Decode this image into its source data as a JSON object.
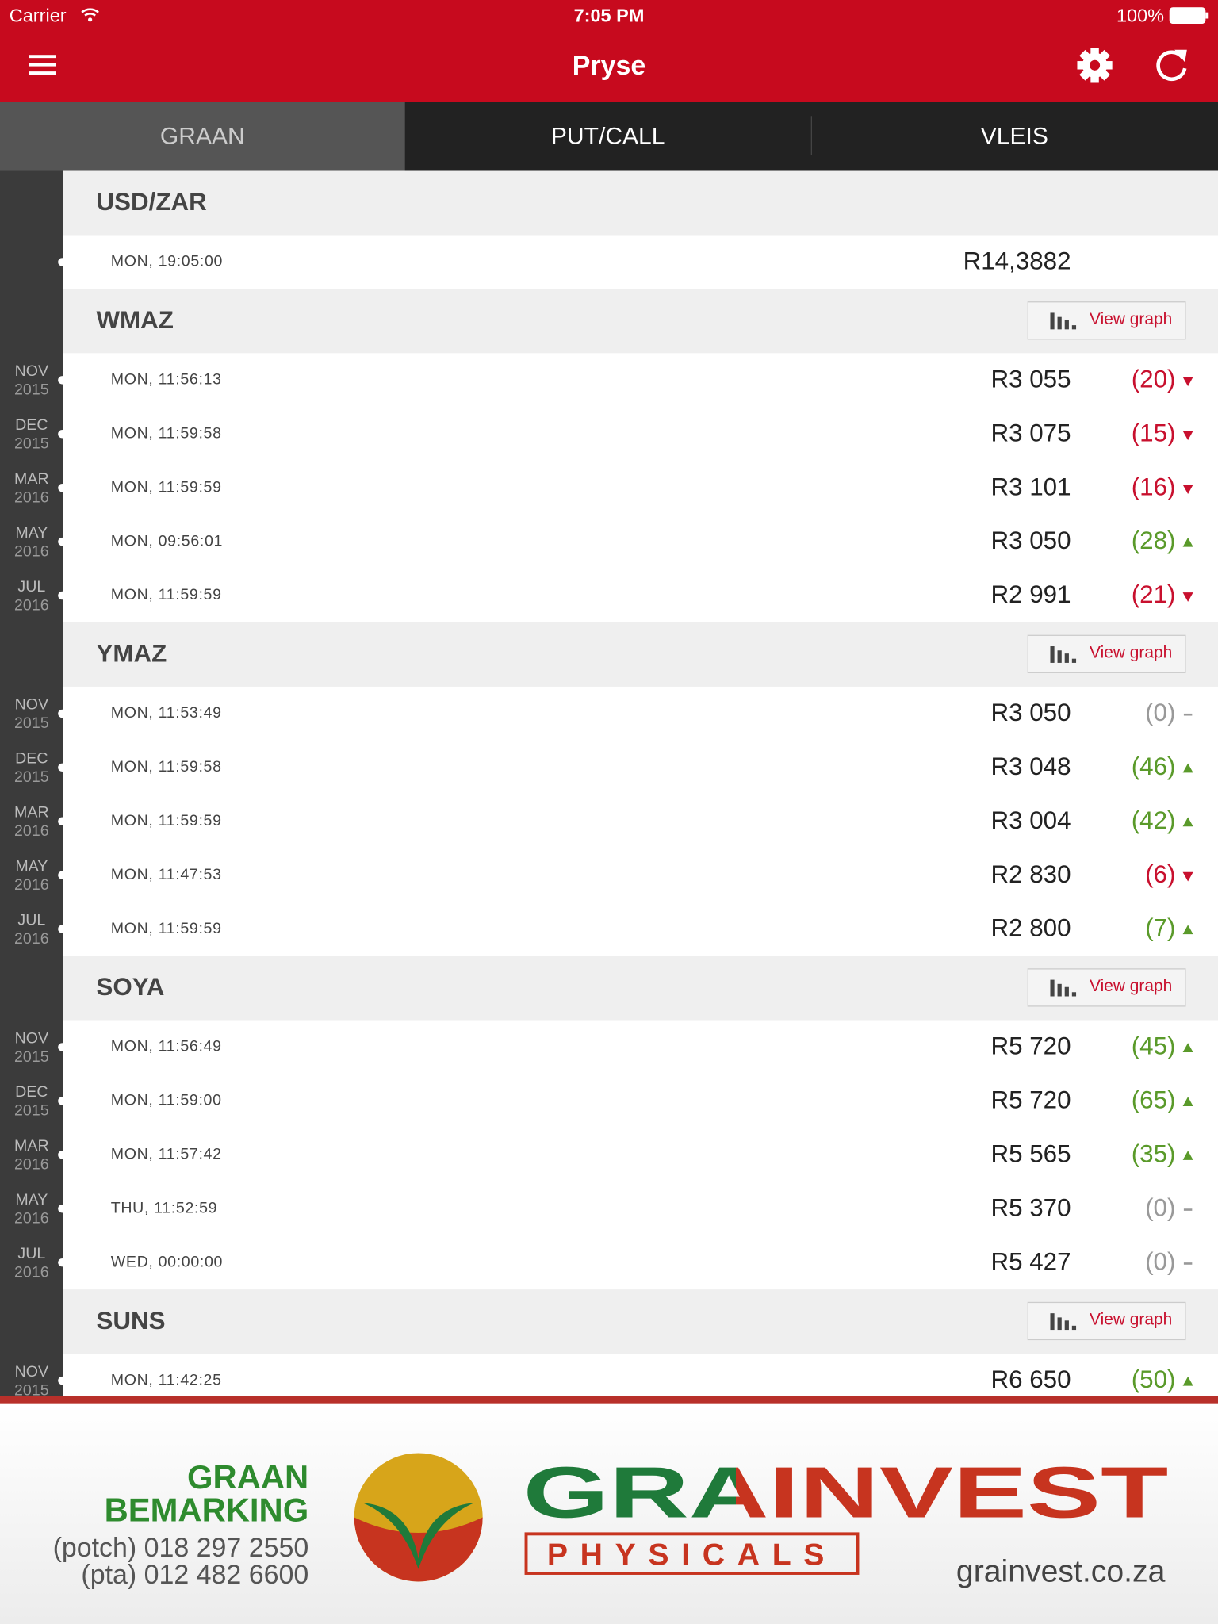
{
  "status_bar": {
    "carrier": "Carrier",
    "time": "7:05 PM",
    "battery": "100%"
  },
  "header": {
    "title": "Pryse"
  },
  "tabs": {
    "items": [
      "GRAAN",
      "PUT/CALL",
      "VLEIS"
    ],
    "active": 0
  },
  "sections": [
    {
      "title": "USD/ZAR",
      "rows": [
        {
          "time": "MON, 19:05:00",
          "price": "R14,3882"
        }
      ]
    },
    {
      "title": "WMAZ",
      "button": "View graph",
      "rows": [
        {
          "month": "NOV",
          "year": "2015",
          "time": "MON, 11:56:13",
          "price": "R3 055",
          "change": "(20)",
          "trend": "down"
        },
        {
          "month": "DEC",
          "year": "2015",
          "time": "MON, 11:59:58",
          "price": "R3 075",
          "change": "(15)",
          "trend": "down"
        },
        {
          "month": "MAR",
          "year": "2016",
          "time": "MON, 11:59:59",
          "price": "R3 101",
          "change": "(16)",
          "trend": "down"
        },
        {
          "month": "MAY",
          "year": "2016",
          "time": "MON, 09:56:01",
          "price": "R3 050",
          "change": "(28)",
          "trend": "up"
        },
        {
          "month": "JUL",
          "year": "2016",
          "time": "MON, 11:59:59",
          "price": "R2 991",
          "change": "(21)",
          "trend": "down"
        }
      ]
    },
    {
      "title": "YMAZ",
      "button": "View graph",
      "rows": [
        {
          "month": "NOV",
          "year": "2015",
          "time": "MON, 11:53:49",
          "price": "R3 050",
          "change": "(0)",
          "trend": "flat"
        },
        {
          "month": "DEC",
          "year": "2015",
          "time": "MON, 11:59:58",
          "price": "R3 048",
          "change": "(46)",
          "trend": "up"
        },
        {
          "month": "MAR",
          "year": "2016",
          "time": "MON, 11:59:59",
          "price": "R3 004",
          "change": "(42)",
          "trend": "up"
        },
        {
          "month": "MAY",
          "year": "2016",
          "time": "MON, 11:47:53",
          "price": "R2 830",
          "change": "(6)",
          "trend": "down"
        },
        {
          "month": "JUL",
          "year": "2016",
          "time": "MON, 11:59:59",
          "price": "R2 800",
          "change": "(7)",
          "trend": "up"
        }
      ]
    },
    {
      "title": "SOYA",
      "button": "View graph",
      "rows": [
        {
          "month": "NOV",
          "year": "2015",
          "time": "MON, 11:56:49",
          "price": "R5 720",
          "change": "(45)",
          "trend": "up"
        },
        {
          "month": "DEC",
          "year": "2015",
          "time": "MON, 11:59:00",
          "price": "R5 720",
          "change": "(65)",
          "trend": "up"
        },
        {
          "month": "MAR",
          "year": "2016",
          "time": "MON, 11:57:42",
          "price": "R5 565",
          "change": "(35)",
          "trend": "up"
        },
        {
          "month": "MAY",
          "year": "2016",
          "time": "THU, 11:52:59",
          "price": "R5 370",
          "change": "(0)",
          "trend": "flat"
        },
        {
          "month": "JUL",
          "year": "2016",
          "time": "WED, 00:00:00",
          "price": "R5 427",
          "change": "(0)",
          "trend": "flat"
        }
      ]
    },
    {
      "title": "SUNS",
      "button": "View graph",
      "rows": [
        {
          "month": "NOV",
          "year": "2015",
          "time": "MON, 11:42:25",
          "price": "R6 650",
          "change": "(50)",
          "trend": "up"
        }
      ]
    }
  ],
  "footer": {
    "line1": "GRAAN",
    "line2": "BEMARKING",
    "phone1": "(potch) 018 297 2550",
    "phone2": "(pta) 012 482 6600",
    "brand": "GRAINVEST",
    "sub": "PHYSICALS",
    "url": "grainvest.co.za"
  }
}
